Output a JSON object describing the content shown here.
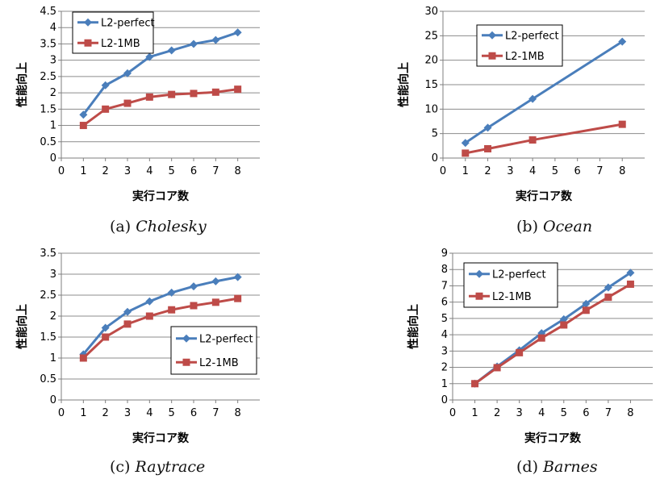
{
  "chart_data": [
    {
      "type": "line",
      "panel_label": "(a)",
      "caption": "Cholesky",
      "xlabel": "実行コア数",
      "ylabel": "性能向上",
      "xlim": [
        0,
        9
      ],
      "xticks": [
        0,
        1,
        2,
        3,
        4,
        5,
        6,
        7,
        8
      ],
      "ylim": [
        0,
        4.5
      ],
      "yticks": [
        "0",
        "0.5",
        "1",
        "1.5",
        "2",
        "2.5",
        "3",
        "3.5",
        "4",
        "4.5"
      ],
      "grid": true,
      "legend_position": "top-left",
      "series": [
        {
          "name": "L2-perfect",
          "color": "#4a7ebb",
          "marker": "diamond",
          "x": [
            1,
            2,
            3,
            4,
            5,
            6,
            7,
            8
          ],
          "values": [
            1.33,
            2.23,
            2.6,
            3.1,
            3.3,
            3.5,
            3.62,
            3.85
          ]
        },
        {
          "name": "L2-1MB",
          "color": "#be4b48",
          "marker": "square",
          "x": [
            1,
            2,
            3,
            4,
            5,
            6,
            7,
            8
          ],
          "values": [
            1.0,
            1.5,
            1.68,
            1.87,
            1.95,
            1.98,
            2.02,
            2.11
          ]
        }
      ]
    },
    {
      "type": "line",
      "panel_label": "(b)",
      "caption": "Ocean",
      "xlabel": "実行コア数",
      "ylabel": "性能向上",
      "xlim": [
        0,
        9
      ],
      "xticks": [
        0,
        1,
        2,
        3,
        4,
        5,
        6,
        7,
        8
      ],
      "ylim": [
        0,
        30
      ],
      "yticks": [
        "0",
        "5",
        "10",
        "15",
        "20",
        "25",
        "30"
      ],
      "grid": true,
      "legend_position": "top-left",
      "series": [
        {
          "name": "L2-perfect",
          "color": "#4a7ebb",
          "marker": "diamond",
          "x": [
            1,
            2,
            4,
            8
          ],
          "values": [
            3.1,
            6.2,
            12.1,
            23.8
          ]
        },
        {
          "name": "L2-1MB",
          "color": "#be4b48",
          "marker": "square",
          "x": [
            1,
            2,
            4,
            8
          ],
          "values": [
            1.0,
            1.9,
            3.7,
            6.9
          ]
        }
      ]
    },
    {
      "type": "line",
      "panel_label": "(c)",
      "caption": "Raytrace",
      "xlabel": "実行コア数",
      "ylabel": "性能向上",
      "xlim": [
        0,
        9
      ],
      "xticks": [
        0,
        1,
        2,
        3,
        4,
        5,
        6,
        7,
        8
      ],
      "ylim": [
        0,
        3.5
      ],
      "yticks": [
        "0",
        "0.5",
        "1",
        "1.5",
        "2",
        "2.5",
        "3",
        "3.5"
      ],
      "grid": true,
      "legend_position": "bottom-right",
      "series": [
        {
          "name": "L2-perfect",
          "color": "#4a7ebb",
          "marker": "diamond",
          "x": [
            1,
            2,
            3,
            4,
            5,
            6,
            7,
            8
          ],
          "values": [
            1.09,
            1.72,
            2.1,
            2.35,
            2.56,
            2.71,
            2.83,
            2.93
          ]
        },
        {
          "name": "L2-1MB",
          "color": "#be4b48",
          "marker": "square",
          "x": [
            1,
            2,
            3,
            4,
            5,
            6,
            7,
            8
          ],
          "values": [
            1.0,
            1.5,
            1.81,
            2.0,
            2.15,
            2.25,
            2.33,
            2.42
          ]
        }
      ]
    },
    {
      "type": "line",
      "panel_label": "(d)",
      "caption": "Barnes",
      "xlabel": "実行コア数",
      "ylabel": "性能向上",
      "xlim": [
        0,
        9
      ],
      "xticks": [
        0,
        1,
        2,
        3,
        4,
        5,
        6,
        7,
        8
      ],
      "ylim": [
        0,
        9
      ],
      "yticks": [
        "0",
        "1",
        "2",
        "3",
        "4",
        "5",
        "6",
        "7",
        "8",
        "9"
      ],
      "grid": true,
      "legend_position": "top-left",
      "series": [
        {
          "name": "L2-perfect",
          "color": "#4a7ebb",
          "marker": "diamond",
          "x": [
            1,
            2,
            3,
            4,
            5,
            6,
            7,
            8
          ],
          "values": [
            1.0,
            2.05,
            3.05,
            4.1,
            4.95,
            5.9,
            6.9,
            7.8
          ]
        },
        {
          "name": "L2-1MB",
          "color": "#be4b48",
          "marker": "square",
          "x": [
            1,
            2,
            3,
            4,
            5,
            6,
            7,
            8
          ],
          "values": [
            1.0,
            1.98,
            2.9,
            3.8,
            4.6,
            5.5,
            6.3,
            7.1
          ]
        }
      ]
    }
  ]
}
